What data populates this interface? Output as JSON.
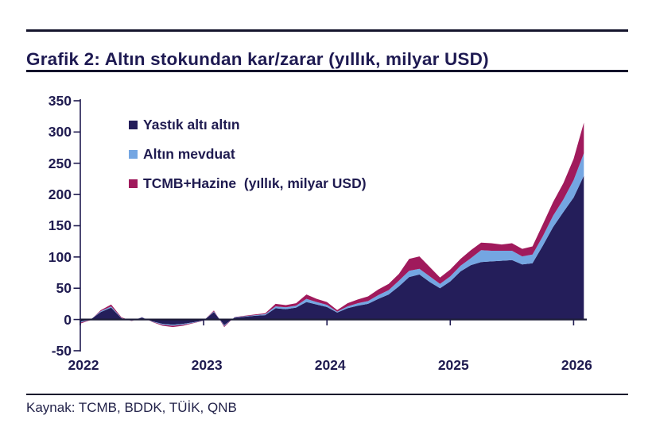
{
  "header": {
    "title": "Grafik 2: Altın stokundan kar/zarar (yıllık, milyar USD)"
  },
  "footer": {
    "source": "Kaynak: TCMB, BDDK, TÜİK, QNB"
  },
  "colors": {
    "text_navy": "#1f1b50",
    "axis": "#1f1b50",
    "zero_line": "#1c1c38",
    "rule": "#14142c"
  },
  "chart_data": {
    "type": "area",
    "stacked": true,
    "title": "Altın stokundan kar/zarar (yıllık, milyar USD)",
    "grid": false,
    "legend_position": "top-left-inside",
    "ylim": [
      -50,
      350
    ],
    "yticks": [
      350,
      300,
      250,
      200,
      150,
      100,
      50,
      0,
      -50
    ],
    "xticks": [
      "2022",
      "2023",
      "2024",
      "2025",
      "2026"
    ],
    "categories": [
      "2022-01",
      "2022-02",
      "2022-03",
      "2022-04",
      "2022-05",
      "2022-06",
      "2022-07",
      "2022-08",
      "2022-09",
      "2022-10",
      "2022-11",
      "2022-12",
      "2023-01",
      "2023-02",
      "2023-03",
      "2023-04",
      "2023-05",
      "2023-06",
      "2023-07",
      "2023-08",
      "2023-09",
      "2023-10",
      "2023-11",
      "2023-12",
      "2024-01",
      "2024-02",
      "2024-03",
      "2024-04",
      "2024-05",
      "2024-06",
      "2024-07",
      "2024-08",
      "2024-09",
      "2024-10",
      "2024-11",
      "2024-12",
      "2025-01",
      "2025-02",
      "2025-03",
      "2025-04",
      "2025-05",
      "2025-06",
      "2025-07",
      "2025-08",
      "2025-09",
      "2025-10",
      "2025-11",
      "2025-12",
      "2026-01",
      "2026-02"
    ],
    "series": [
      {
        "name": "Yastık altı altın",
        "color": "#241e5a",
        "values": [
          -3.5,
          0,
          12,
          19,
          2,
          -1.5,
          3,
          -3,
          -7,
          -8.5,
          -7,
          -4.5,
          -1.5,
          12,
          -9,
          3,
          4.5,
          6,
          7,
          18,
          16.5,
          19,
          28,
          24,
          20,
          11,
          18,
          22,
          25,
          33,
          40,
          53,
          68,
          72,
          60,
          50,
          61,
          77,
          87,
          92,
          93,
          94,
          95,
          88,
          90,
          118,
          148,
          172,
          195,
          230
        ]
      },
      {
        "name": "Altın mevduat",
        "color": "#74a6e2",
        "values": [
          -1.5,
          -0.5,
          1.5,
          2,
          0.5,
          -0.5,
          0.5,
          -0.5,
          -1.5,
          -1.5,
          -1.5,
          -0.75,
          -0.25,
          1,
          -1.5,
          0.5,
          0.75,
          1,
          1.5,
          3,
          3,
          3,
          5,
          4,
          3.5,
          1.5,
          3,
          4,
          4.5,
          6,
          7,
          9,
          10,
          9,
          9,
          7,
          8,
          9,
          11,
          19,
          17,
          16,
          15,
          13,
          14,
          15,
          18,
          20,
          28,
          36
        ]
      },
      {
        "name": "TCMB+Hazine  (yıllık, milyar USD)",
        "color": "#a01a5c",
        "values": [
          -1.5,
          -0.5,
          1.5,
          3,
          1,
          -0.5,
          0.5,
          -0.5,
          -1.5,
          -2,
          -1.5,
          -0.75,
          -0.25,
          1.5,
          -1.5,
          0.5,
          0.75,
          1,
          1.5,
          4,
          3.5,
          4,
          7,
          5,
          4.5,
          2.5,
          5,
          6,
          7.5,
          9,
          10,
          11,
          19,
          20,
          15,
          10,
          11,
          11,
          13,
          12,
          12,
          10,
          12,
          12,
          13,
          19,
          22,
          26,
          34,
          49
        ]
      }
    ]
  }
}
